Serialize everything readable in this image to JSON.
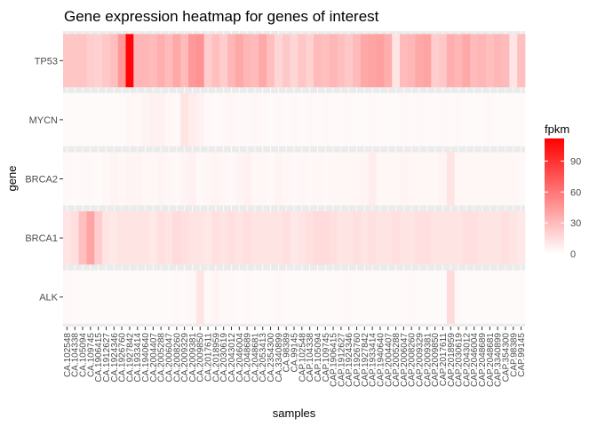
{
  "chart_data": {
    "type": "heatmap",
    "title": "Gene expression heatmap for genes of interest",
    "xlabel": "samples",
    "ylabel": "gene",
    "genes": [
      "TP53",
      "MYCN",
      "BRCA2",
      "BRCA1",
      "ALK"
    ],
    "samples": [
      "CA.102548",
      "CA.104338",
      "CA.105094",
      "CA.109745",
      "CA.1906415",
      "CA.1912627",
      "CA.1924346",
      "CA.1926760",
      "CA.1927842",
      "CA.1933414",
      "CA.1940640",
      "CA.2004407",
      "CA.2005288",
      "CA.2006047",
      "CA.2008260",
      "CA.2009329",
      "CA.2009381",
      "CA.2009850",
      "CA.2017611",
      "CA.2018959",
      "CA.2030619",
      "CA.2043012",
      "CA.2046004",
      "CA.2048689",
      "CA.2048681",
      "CA.2053413",
      "CA.2354300",
      "CA.3340899",
      "CA.98389",
      "CA.99145",
      "CAP.102548",
      "CAP.104338",
      "CAP.105094",
      "CAP.109745",
      "CAP.1906415",
      "CAP.1912627",
      "CAP.1924346",
      "CAP.1926760",
      "CAP.1927842",
      "CAP.1933414",
      "CAP.1940640",
      "CAP.2004407",
      "CAP.2005288",
      "CAP.2006047",
      "CAP.2008260",
      "CAP.2009329",
      "CAP.2009381",
      "CAP.2009850",
      "CAP.2017611",
      "CAP.2018959",
      "CAP.2030619",
      "CAP.2043012",
      "CAP.2046004",
      "CAP.2048689",
      "CAP.2048681",
      "CAP.3340899",
      "CAP.354300",
      "CAP.98389",
      "CAP.99145"
    ],
    "values": {
      "TP53": [
        25,
        25,
        26,
        22,
        20,
        24,
        28,
        45,
        110,
        32,
        32,
        30,
        35,
        30,
        38,
        30,
        45,
        48,
        22,
        28,
        22,
        32,
        38,
        32,
        30,
        38,
        28,
        18,
        24,
        18,
        25,
        20,
        30,
        28,
        32,
        28,
        24,
        30,
        38,
        40,
        42,
        36,
        12,
        30,
        32,
        38,
        40,
        22,
        24,
        36,
        32,
        38,
        30,
        32,
        28,
        32,
        30,
        12,
        28
      ],
      "MYCN": [
        2,
        2,
        2,
        2,
        2,
        2,
        2,
        2,
        4,
        3,
        5,
        6,
        6,
        4,
        3,
        12,
        8,
        6,
        3,
        2,
        3,
        4,
        3,
        3,
        4,
        3,
        2,
        3,
        2,
        3,
        2,
        3,
        2,
        3,
        2,
        2,
        3,
        2,
        2,
        3,
        2,
        2,
        2,
        3,
        2,
        3,
        2,
        2,
        3,
        2,
        3,
        2,
        2,
        2,
        3,
        2,
        2,
        2,
        2
      ],
      "BRCA2": [
        3,
        2,
        3,
        3,
        2,
        4,
        5,
        4,
        5,
        5,
        4,
        4,
        5,
        4,
        3,
        5,
        6,
        3,
        4,
        5,
        4,
        3,
        5,
        6,
        4,
        4,
        3,
        5,
        4,
        3,
        4,
        3,
        4,
        3,
        4,
        4,
        4,
        4,
        5,
        8,
        4,
        4,
        4,
        5,
        4,
        4,
        4,
        4,
        5,
        12,
        4,
        4,
        4,
        4,
        4,
        4,
        4,
        4,
        3
      ],
      "BRCA1": [
        12,
        14,
        28,
        40,
        22,
        12,
        10,
        12,
        12,
        12,
        12,
        10,
        14,
        12,
        16,
        14,
        12,
        12,
        10,
        14,
        12,
        14,
        12,
        14,
        12,
        12,
        12,
        12,
        14,
        10,
        12,
        14,
        16,
        16,
        14,
        12,
        12,
        14,
        12,
        14,
        12,
        12,
        14,
        12,
        12,
        14,
        14,
        12,
        12,
        12,
        12,
        14,
        14,
        12,
        12,
        12,
        14,
        12,
        10
      ],
      "ALK": [
        3,
        2,
        2,
        2,
        2,
        2,
        2,
        2,
        2,
        2,
        2,
        2,
        2,
        2,
        3,
        2,
        4,
        12,
        3,
        5,
        3,
        3,
        2,
        3,
        2,
        2,
        2,
        3,
        2,
        2,
        2,
        2,
        2,
        2,
        2,
        2,
        3,
        2,
        2,
        2,
        2,
        2,
        2,
        2,
        3,
        2,
        2,
        2,
        2,
        16,
        3,
        2,
        2,
        2,
        2,
        2,
        2,
        2,
        2
      ]
    },
    "scale": {
      "min": 0,
      "max": 112,
      "low_color": "#ffffff",
      "high_color": "#ff0000"
    },
    "legend": {
      "title": "fpkm",
      "ticks": [
        0,
        30,
        60,
        90
      ],
      "position": "right"
    },
    "panel_background": "#ebebeb"
  }
}
